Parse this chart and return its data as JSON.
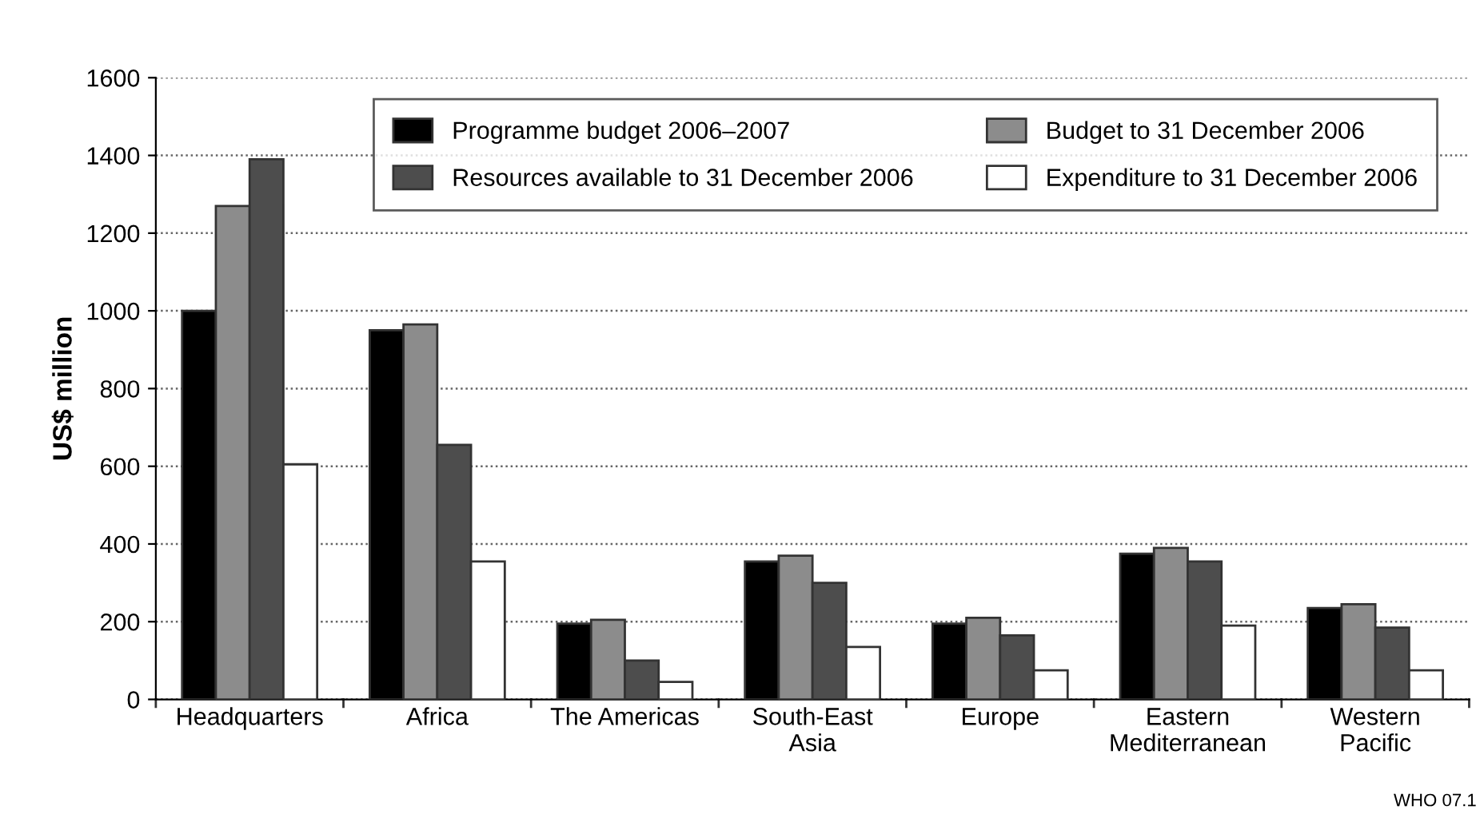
{
  "chart_data": {
    "type": "bar",
    "ylabel": "US$ million",
    "categories": [
      "Headquarters",
      "Africa",
      "The Americas",
      "South-East\nAsia",
      "Europe",
      "Eastern\nMediterranean",
      "Western\nPacific"
    ],
    "series": [
      {
        "name": "Programme budget 2006–2007",
        "color": "#000000",
        "values": [
          1000,
          950,
          195,
          355,
          195,
          375,
          235
        ]
      },
      {
        "name": "Budget to 31 December 2006",
        "color": "#8c8c8c",
        "values": [
          1270,
          965,
          205,
          370,
          210,
          390,
          245
        ]
      },
      {
        "name": "Resources available to 31 December 2006",
        "color": "#4d4d4d",
        "values": [
          1390,
          655,
          100,
          300,
          165,
          355,
          185
        ]
      },
      {
        "name": "Expenditure to 31 December 2006",
        "color": "#ffffff",
        "values": [
          605,
          355,
          45,
          135,
          75,
          190,
          75
        ]
      }
    ],
    "ylim": [
      0,
      1600
    ],
    "yticks": [
      0,
      200,
      400,
      600,
      800,
      1000,
      1200,
      1400,
      1600
    ],
    "grid": "y",
    "legend": "top right",
    "annotations": [
      "WHO 07.1"
    ]
  }
}
